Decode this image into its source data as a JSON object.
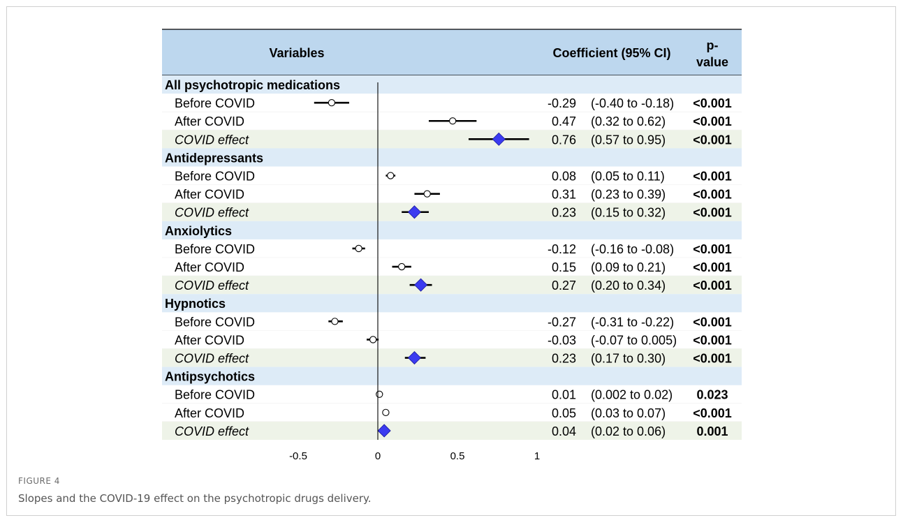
{
  "header": {
    "variables": "Variables",
    "coefficient": "Coefficient (95% CI)",
    "pvalue_line1": "p-",
    "pvalue_line2": "value"
  },
  "caption": {
    "label": "FIGURE 4",
    "text": "Slopes and the COVID-19 effect on the psychotropic drugs delivery."
  },
  "colors": {
    "header_bg": "#bdd7ee",
    "group_bg": "#ddebf7",
    "effect_bg": "#eef3e8",
    "diamond": "#3b3bf0"
  },
  "chart_data": {
    "type": "forest",
    "xlim": [
      -0.5,
      1
    ],
    "x_ticks": [
      "-0.5",
      "0",
      "0.5",
      "1"
    ],
    "reference_line": 0,
    "groups": [
      {
        "name": "All psychotropic medications",
        "rows": [
          {
            "label": "Before COVID",
            "estimate": -0.29,
            "lo": -0.4,
            "hi": -0.18,
            "coef_text": "-0.29",
            "ci_text": "(-0.40 to -0.18)",
            "p_text": "<0.001",
            "effect": false
          },
          {
            "label": "After COVID",
            "estimate": 0.47,
            "lo": 0.32,
            "hi": 0.62,
            "coef_text": "0.47",
            "ci_text": "(0.32 to 0.62)",
            "p_text": "<0.001",
            "effect": false
          },
          {
            "label": "COVID effect",
            "estimate": 0.76,
            "lo": 0.57,
            "hi": 0.95,
            "coef_text": "0.76",
            "ci_text": "(0.57 to 0.95)",
            "p_text": "<0.001",
            "effect": true
          }
        ]
      },
      {
        "name": "Antidepressants",
        "rows": [
          {
            "label": "Before COVID",
            "estimate": 0.08,
            "lo": 0.05,
            "hi": 0.11,
            "coef_text": "0.08",
            "ci_text": "(0.05 to 0.11)",
            "p_text": "<0.001",
            "effect": false
          },
          {
            "label": "After COVID",
            "estimate": 0.31,
            "lo": 0.23,
            "hi": 0.39,
            "coef_text": "0.31",
            "ci_text": "(0.23 to 0.39)",
            "p_text": "<0.001",
            "effect": false
          },
          {
            "label": "COVID effect",
            "estimate": 0.23,
            "lo": 0.15,
            "hi": 0.32,
            "coef_text": "0.23",
            "ci_text": "(0.15 to 0.32)",
            "p_text": "<0.001",
            "effect": true
          }
        ]
      },
      {
        "name": "Anxiolytics",
        "rows": [
          {
            "label": "Before COVID",
            "estimate": -0.12,
            "lo": -0.16,
            "hi": -0.08,
            "coef_text": "-0.12",
            "ci_text": "(-0.16 to -0.08)",
            "p_text": "<0.001",
            "effect": false
          },
          {
            "label": "After COVID",
            "estimate": 0.15,
            "lo": 0.09,
            "hi": 0.21,
            "coef_text": "0.15",
            "ci_text": "(0.09 to 0.21)",
            "p_text": "<0.001",
            "effect": false
          },
          {
            "label": "COVID effect",
            "estimate": 0.27,
            "lo": 0.2,
            "hi": 0.34,
            "coef_text": "0.27",
            "ci_text": "(0.20 to 0.34)",
            "p_text": "<0.001",
            "effect": true
          }
        ]
      },
      {
        "name": "Hypnotics",
        "rows": [
          {
            "label": "Before COVID",
            "estimate": -0.27,
            "lo": -0.31,
            "hi": -0.22,
            "coef_text": "-0.27",
            "ci_text": "(-0.31 to -0.22)",
            "p_text": "<0.001",
            "effect": false
          },
          {
            "label": "After COVID",
            "estimate": -0.03,
            "lo": -0.07,
            "hi": 0.005,
            "coef_text": "-0.03",
            "ci_text": "(-0.07 to 0.005)",
            "p_text": "<0.001",
            "effect": false
          },
          {
            "label": "COVID effect",
            "estimate": 0.23,
            "lo": 0.17,
            "hi": 0.3,
            "coef_text": "0.23",
            "ci_text": "(0.17 to 0.30)",
            "p_text": "<0.001",
            "effect": true
          }
        ]
      },
      {
        "name": "Antipsychotics",
        "rows": [
          {
            "label": "Before COVID",
            "estimate": 0.01,
            "lo": 0.002,
            "hi": 0.02,
            "coef_text": "0.01",
            "ci_text": "(0.002 to 0.02)",
            "p_text": "0.023",
            "effect": false
          },
          {
            "label": "After COVID",
            "estimate": 0.05,
            "lo": 0.03,
            "hi": 0.07,
            "coef_text": "0.05",
            "ci_text": "(0.03 to 0.07)",
            "p_text": "<0.001",
            "effect": false
          },
          {
            "label": "COVID effect",
            "estimate": 0.04,
            "lo": 0.02,
            "hi": 0.06,
            "coef_text": "0.04",
            "ci_text": "(0.02 to 0.06)",
            "p_text": "0.001",
            "effect": true
          }
        ]
      }
    ]
  }
}
